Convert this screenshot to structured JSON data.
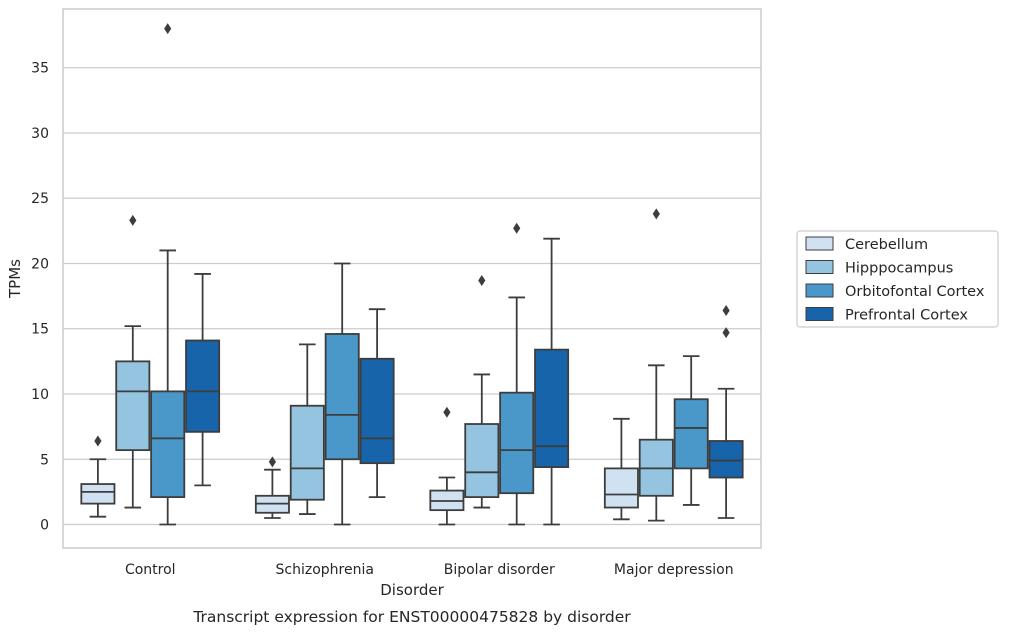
{
  "caption": "Transcript expression for ENST00000475828 by disorder",
  "chart_data": {
    "type": "box",
    "title": "",
    "xlabel": "Disorder",
    "ylabel": "TPMs",
    "ylim": [
      -1.8,
      39.5
    ],
    "yticks": [
      0,
      5,
      10,
      15,
      20,
      25,
      30,
      35
    ],
    "grid": "horizontal",
    "legend_position": "right",
    "categories": [
      "Control",
      "Schizophrenia",
      "Bipolar disorder",
      "Major depression"
    ],
    "series": [
      {
        "name": "Cerebellum",
        "color": "#d0e1f2",
        "boxes": [
          {
            "min": 0.6,
            "q1": 1.6,
            "median": 2.5,
            "q3": 3.1,
            "max": 5.0,
            "outliers": [
              6.4
            ]
          },
          {
            "min": 0.5,
            "q1": 0.9,
            "median": 1.6,
            "q3": 2.2,
            "max": 4.2,
            "outliers": [
              4.8
            ]
          },
          {
            "min": 0.0,
            "q1": 1.1,
            "median": 1.8,
            "q3": 2.6,
            "max": 3.6,
            "outliers": [
              8.6
            ]
          },
          {
            "min": 0.4,
            "q1": 1.3,
            "median": 2.3,
            "q3": 4.3,
            "max": 8.1,
            "outliers": []
          }
        ]
      },
      {
        "name": "Hipppocampus",
        "color": "#94c4df",
        "boxes": [
          {
            "min": 1.3,
            "q1": 5.7,
            "median": 10.2,
            "q3": 12.5,
            "max": 15.2,
            "outliers": [
              23.3
            ]
          },
          {
            "min": 0.8,
            "q1": 1.9,
            "median": 4.3,
            "q3": 9.1,
            "max": 13.8,
            "outliers": []
          },
          {
            "min": 1.3,
            "q1": 2.1,
            "median": 4.0,
            "q3": 7.7,
            "max": 11.5,
            "outliers": [
              18.7
            ]
          },
          {
            "min": 0.3,
            "q1": 2.2,
            "median": 4.3,
            "q3": 6.5,
            "max": 12.2,
            "outliers": [
              23.8
            ]
          }
        ]
      },
      {
        "name": "Orbitofontal Cortex",
        "color": "#4a98c9",
        "boxes": [
          {
            "min": 0.0,
            "q1": 2.1,
            "median": 6.6,
            "q3": 10.2,
            "max": 21.0,
            "outliers": [
              38.0
            ]
          },
          {
            "min": 0.0,
            "q1": 5.0,
            "median": 8.4,
            "q3": 14.6,
            "max": 20.0,
            "outliers": []
          },
          {
            "min": 0.0,
            "q1": 2.4,
            "median": 5.7,
            "q3": 10.1,
            "max": 17.4,
            "outliers": [
              22.7
            ]
          },
          {
            "min": 1.5,
            "q1": 4.3,
            "median": 7.4,
            "q3": 9.6,
            "max": 12.9,
            "outliers": []
          }
        ]
      },
      {
        "name": "Prefrontal Cortex",
        "color": "#1764ab",
        "boxes": [
          {
            "min": 3.0,
            "q1": 7.1,
            "median": 10.2,
            "q3": 14.1,
            "max": 19.2,
            "outliers": []
          },
          {
            "min": 2.1,
            "q1": 4.7,
            "median": 6.6,
            "q3": 12.7,
            "max": 16.5,
            "outliers": []
          },
          {
            "min": 0.0,
            "q1": 4.4,
            "median": 6.0,
            "q3": 13.4,
            "max": 21.9,
            "outliers": []
          },
          {
            "min": 0.5,
            "q1": 3.6,
            "median": 4.9,
            "q3": 6.4,
            "max": 10.4,
            "outliers": [
              14.7,
              16.4
            ]
          }
        ]
      }
    ]
  }
}
